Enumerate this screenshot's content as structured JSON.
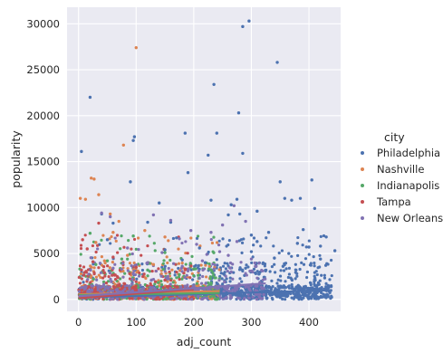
{
  "chart_data": {
    "type": "scatter",
    "xlabel": "adj_count",
    "ylabel": "popularity",
    "xlim": [
      -20,
      455
    ],
    "ylim": [
      -1300,
      31800
    ],
    "xticks": [
      0,
      100,
      200,
      300,
      400
    ],
    "yticks": [
      0,
      5000,
      10000,
      15000,
      20000,
      25000,
      30000
    ],
    "grid": true,
    "legend_placement": "right",
    "legend_title": "city",
    "series": [
      {
        "name": "Philadelphia",
        "color": "#4c72b0",
        "regression": {
          "x": [
            0,
            440
          ],
          "y": [
            200,
            1000
          ]
        },
        "points": [
          [
            5,
            16100
          ],
          [
            20,
            22000
          ],
          [
            95,
            17300
          ],
          [
            97,
            17700
          ],
          [
            185,
            18100
          ],
          [
            190,
            13800
          ],
          [
            235,
            23400
          ],
          [
            240,
            18100
          ],
          [
            225,
            15700
          ],
          [
            278,
            20300
          ],
          [
            285,
            29700
          ],
          [
            296,
            30300
          ],
          [
            345,
            25800
          ],
          [
            285,
            15900
          ],
          [
            90,
            12800
          ],
          [
            230,
            10800
          ],
          [
            260,
            9200
          ],
          [
            265,
            10300
          ],
          [
            275,
            10900
          ],
          [
            280,
            9300
          ],
          [
            300,
            7000
          ],
          [
            310,
            9600
          ],
          [
            330,
            7300
          ],
          [
            350,
            12800
          ],
          [
            358,
            11000
          ],
          [
            370,
            10800
          ],
          [
            385,
            11000
          ],
          [
            390,
            7600
          ],
          [
            405,
            13000
          ],
          [
            410,
            9900
          ],
          [
            420,
            5800
          ],
          [
            420,
            4400
          ],
          [
            430,
            6800
          ],
          [
            445,
            5300
          ],
          [
            400,
            5700
          ],
          [
            380,
            6100
          ],
          [
            365,
            5000
          ],
          [
            340,
            4500
          ],
          [
            310,
            6300
          ],
          [
            300,
            5200
          ],
          [
            320,
            3900
          ],
          [
            355,
            3600
          ],
          [
            290,
            3400
          ],
          [
            140,
            10500
          ],
          [
            120,
            8400
          ],
          [
            160,
            8400
          ],
          [
            170,
            6700
          ],
          [
            60,
            8300
          ],
          [
            40,
            9300
          ],
          [
            50,
            6500
          ],
          [
            150,
            5400
          ],
          [
            180,
            4300
          ],
          [
            210,
            5600
          ],
          [
            220,
            4000
          ]
        ]
      },
      {
        "name": "Nashville",
        "color": "#dd8452",
        "regression": {
          "x": [
            0,
            245
          ],
          "y": [
            550,
            900
          ]
        },
        "points": [
          [
            100,
            27400
          ],
          [
            78,
            16800
          ],
          [
            22,
            13200
          ],
          [
            27,
            13100
          ],
          [
            35,
            11400
          ],
          [
            12,
            10900
          ],
          [
            3,
            11000
          ],
          [
            55,
            9300
          ],
          [
            70,
            8500
          ],
          [
            115,
            7500
          ],
          [
            60,
            7300
          ],
          [
            150,
            6800
          ],
          [
            30,
            6200
          ],
          [
            85,
            4800
          ],
          [
            45,
            4200
          ],
          [
            130,
            3800
          ]
        ]
      },
      {
        "name": "Indianapolis",
        "color": "#55a868",
        "regression": {
          "x": [
            0,
            245
          ],
          "y": [
            480,
            700
          ]
        },
        "points": [
          [
            20,
            7200
          ],
          [
            95,
            6900
          ],
          [
            150,
            5100
          ],
          [
            75,
            4400
          ],
          [
            50,
            4200
          ],
          [
            200,
            3300
          ],
          [
            120,
            3200
          ],
          [
            30,
            3800
          ],
          [
            230,
            1800
          ],
          [
            175,
            2700
          ]
        ]
      },
      {
        "name": "Tampa",
        "color": "#c44e52",
        "regression": {
          "x": [
            0,
            200
          ],
          "y": [
            150,
            1100
          ]
        },
        "points": [
          [
            7,
            6500
          ],
          [
            35,
            8300
          ],
          [
            15,
            5500
          ],
          [
            60,
            4600
          ],
          [
            25,
            4100
          ],
          [
            100,
            3500
          ],
          [
            45,
            2900
          ],
          [
            150,
            2100
          ],
          [
            5,
            3200
          ],
          [
            80,
            1700
          ]
        ]
      },
      {
        "name": "New Orleans",
        "color": "#8172b3",
        "regression": {
          "x": [
            0,
            325
          ],
          "y": [
            350,
            1750
          ]
        },
        "points": [
          [
            40,
            9400
          ],
          [
            55,
            9000
          ],
          [
            130,
            9200
          ],
          [
            160,
            8600
          ],
          [
            250,
            8100
          ],
          [
            270,
            10200
          ],
          [
            290,
            8500
          ],
          [
            195,
            7500
          ],
          [
            230,
            7300
          ],
          [
            175,
            6600
          ],
          [
            275,
            6300
          ],
          [
            205,
            6000
          ],
          [
            85,
            5600
          ],
          [
            145,
            5100
          ],
          [
            245,
            5200
          ],
          [
            260,
            4800
          ],
          [
            215,
            4200
          ],
          [
            300,
            4400
          ],
          [
            120,
            4000
          ],
          [
            180,
            3600
          ],
          [
            235,
            3300
          ],
          [
            265,
            3000
          ],
          [
            60,
            3400
          ],
          [
            95,
            2800
          ],
          [
            155,
            2500
          ]
        ]
      }
    ]
  }
}
